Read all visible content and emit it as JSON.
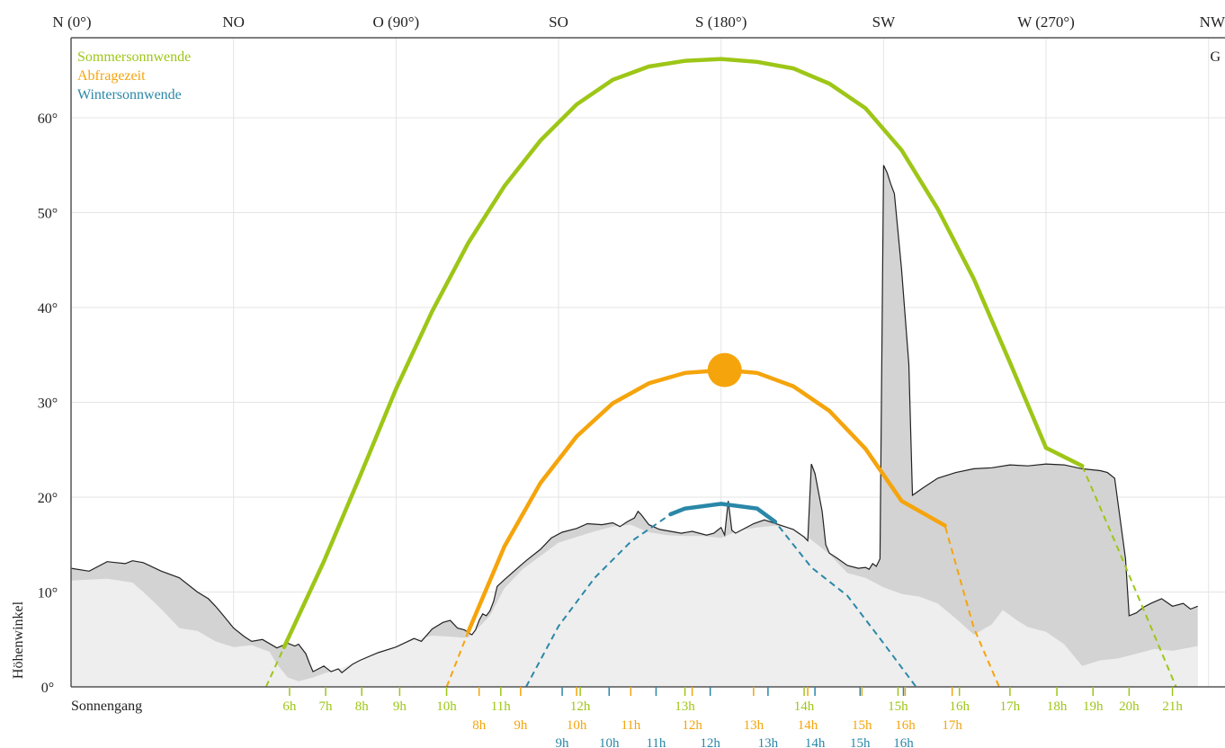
{
  "chart_data": {
    "type": "line",
    "xlabel": "",
    "ylabel": "Höhenwinkel",
    "xlim": [
      0,
      312
    ],
    "ylim": [
      0,
      68
    ],
    "x_ticks": [
      {
        "x": 0,
        "label": "N (0°)"
      },
      {
        "x": 45,
        "label": "NO"
      },
      {
        "x": 90,
        "label": "O (90°)"
      },
      {
        "x": 135,
        "label": "SO"
      },
      {
        "x": 180,
        "label": "S (180°)"
      },
      {
        "x": 225,
        "label": "SW"
      },
      {
        "x": 270,
        "label": "W (270°)"
      },
      {
        "x": 315,
        "label": "NW"
      }
    ],
    "y_ticks": [
      {
        "y": 0,
        "label": "0°"
      },
      {
        "y": 10,
        "label": "10°"
      },
      {
        "y": 20,
        "label": "20°"
      },
      {
        "y": 30,
        "label": "30°"
      },
      {
        "y": 40,
        "label": "40°"
      },
      {
        "y": 50,
        "label": "50°"
      },
      {
        "y": 60,
        "label": "60°"
      }
    ],
    "corner_label": "G",
    "row_label": "Sonnengang",
    "legend": [
      {
        "name": "Sommersonnwende",
        "color": "#9dc617"
      },
      {
        "name": "Abfragezeit",
        "color": "#f5a40c"
      },
      {
        "name": "Wintersonnwende",
        "color": "#2a87a8"
      }
    ],
    "series": [
      {
        "name": "Sommersonnwende",
        "color": "#9dc617",
        "peak_azimuth": 180,
        "peak_altitude": 66.2,
        "visible_from_azimuth": 59,
        "visible_to_azimuth": 280,
        "x": [
          54,
          59,
          70,
          80,
          90,
          100,
          110,
          120,
          130,
          140,
          150,
          160,
          170,
          180,
          190,
          200,
          210,
          220,
          230,
          240,
          250,
          260,
          270,
          280,
          290,
          306
        ],
        "y": [
          0,
          4.2,
          13.2,
          22.2,
          31.4,
          39.6,
          46.8,
          52.8,
          57.6,
          61.4,
          64.0,
          65.4,
          66.0,
          66.2,
          65.9,
          65.2,
          63.6,
          61.0,
          56.6,
          50.4,
          43.0,
          34.2,
          25.2,
          23.3,
          14.5,
          0
        ]
      },
      {
        "name": "Abfragezeit",
        "color": "#f5a40c",
        "peak_azimuth": 181,
        "peak_altitude": 33.4,
        "visible_from_azimuth": 110,
        "visible_to_azimuth": 242,
        "x": [
          104,
          110,
          120,
          130,
          140,
          150,
          160,
          170,
          181,
          190,
          200,
          210,
          220,
          230,
          242,
          250,
          257
        ],
        "y": [
          0,
          5.8,
          14.8,
          21.5,
          26.4,
          29.9,
          32.0,
          33.1,
          33.4,
          33.1,
          31.7,
          29.1,
          25.1,
          19.6,
          17.0,
          6.2,
          0
        ]
      },
      {
        "name": "Wintersonnwende",
        "color": "#2a87a8",
        "peak_azimuth": 180,
        "peak_altitude": 19.3,
        "visible_from_azimuth": 166,
        "visible_to_azimuth": 195,
        "x": [
          126,
          135,
          145,
          155,
          166,
          170,
          180,
          190,
          195,
          205,
          215,
          225,
          234
        ],
        "y": [
          0,
          6.4,
          11.5,
          15.3,
          18.2,
          18.8,
          19.3,
          18.8,
          17.4,
          12.6,
          9.6,
          4.6,
          0
        ]
      }
    ],
    "horizon": {
      "name": "Horizont",
      "x": [
        0,
        5,
        10,
        15,
        17,
        20,
        25,
        30,
        35,
        38,
        40,
        42,
        45,
        48,
        50,
        53,
        57,
        60,
        62,
        63,
        65,
        66,
        67,
        70,
        72,
        74,
        75,
        78,
        80,
        85,
        90,
        95,
        97,
        100,
        103,
        105,
        107,
        109,
        110,
        111,
        112,
        113,
        114,
        115,
        116,
        117,
        118,
        120,
        123,
        126,
        130,
        133,
        136,
        140,
        143,
        147,
        150,
        152,
        154,
        156,
        157,
        158,
        160,
        163,
        166,
        169,
        172,
        176,
        178,
        179,
        180,
        181,
        182,
        183,
        184,
        186,
        189,
        192,
        196,
        200,
        203,
        204,
        205,
        206,
        208,
        209,
        210,
        212,
        215,
        218,
        220,
        221,
        222,
        223,
        224,
        225,
        226,
        227,
        228,
        230,
        232,
        233,
        236,
        240,
        245,
        250,
        255,
        260,
        265,
        270,
        275,
        280,
        285,
        287,
        289,
        292,
        293,
        295,
        297,
        299,
        302,
        305,
        308,
        310,
        312
      ],
      "y": [
        12.5,
        12.2,
        13.2,
        13.0,
        13.3,
        13.1,
        12.2,
        11.5,
        10.0,
        9.3,
        8.5,
        7.6,
        6.2,
        5.3,
        4.8,
        5.0,
        4.1,
        4.6,
        4.3,
        4.5,
        3.5,
        2.5,
        1.6,
        2.2,
        1.6,
        1.9,
        1.5,
        2.4,
        2.8,
        3.6,
        4.2,
        5.1,
        4.8,
        6.1,
        6.8,
        7.0,
        6.2,
        6.0,
        5.7,
        5.5,
        6.0,
        7.0,
        7.7,
        7.5,
        8.0,
        9.0,
        10.6,
        11.3,
        12.3,
        13.3,
        14.5,
        15.7,
        16.3,
        16.7,
        17.2,
        17.1,
        17.3,
        16.9,
        17.4,
        17.8,
        18.5,
        18.1,
        17.1,
        16.6,
        16.4,
        16.2,
        16.4,
        16.0,
        16.2,
        16.5,
        16.8,
        16.0,
        19.6,
        16.5,
        16.2,
        16.6,
        17.2,
        17.6,
        17.1,
        16.6,
        15.8,
        15.4,
        23.5,
        22.5,
        18.5,
        15.0,
        14.1,
        13.6,
        12.8,
        12.5,
        12.6,
        12.4,
        13.0,
        12.7,
        13.5,
        55.0,
        54.2,
        53.0,
        52.0,
        44.0,
        34.0,
        20.2,
        21.0,
        22.0,
        22.6,
        23.0,
        23.1,
        23.4,
        23.3,
        23.5,
        23.4,
        23.0,
        22.8,
        22.6,
        22.0,
        13.5,
        7.5,
        7.8,
        8.4,
        8.8,
        9.3,
        8.5,
        8.8,
        8.2,
        8.5
      ]
    },
    "horizon_near": {
      "name": "Nahhorizont",
      "x": [
        0,
        10,
        17,
        20,
        25,
        30,
        35,
        40,
        45,
        50,
        55,
        57,
        60,
        63,
        67,
        70,
        75,
        80,
        85,
        90,
        95,
        100,
        105,
        108,
        110,
        113,
        116,
        120,
        125,
        130,
        135,
        140,
        145,
        150,
        155,
        160,
        165,
        170,
        175,
        180,
        185,
        190,
        195,
        200,
        205,
        210,
        215,
        220,
        225,
        230,
        235,
        240,
        245,
        250,
        255,
        258,
        262,
        265,
        270,
        275,
        280,
        285,
        290,
        295,
        300,
        305,
        312
      ],
      "y": [
        11.2,
        11.4,
        11.0,
        10.0,
        8.2,
        6.2,
        5.9,
        4.8,
        4.2,
        4.4,
        3.7,
        2.4,
        1.0,
        0.6,
        1.0,
        1.4,
        2.0,
        2.8,
        3.6,
        4.2,
        5.0,
        5.4,
        5.3,
        5.2,
        5.2,
        6.3,
        7.5,
        10.4,
        12.4,
        13.8,
        15.2,
        15.8,
        16.4,
        16.9,
        17.1,
        16.3,
        16.0,
        15.9,
        15.9,
        15.7,
        16.5,
        16.8,
        17.0,
        16.7,
        15.5,
        14.0,
        12.0,
        11.5,
        10.5,
        9.8,
        9.5,
        8.8,
        7.2,
        5.5,
        6.6,
        8.1,
        7.0,
        6.3,
        5.8,
        4.5,
        2.2,
        2.8,
        3.0,
        3.5,
        4.0,
        3.8,
        4.3
      ]
    },
    "marker": {
      "label": "Abfragezeit",
      "azimuth": 181,
      "altitude": 33.4,
      "color": "#f5a40c"
    },
    "hour_rows": [
      {
        "series": "Sommersonnwende",
        "color": "#9dc617",
        "labels": [
          {
            "x": 60.5,
            "text": "6h"
          },
          {
            "x": 70.5,
            "text": "7h"
          },
          {
            "x": 80.5,
            "text": "8h"
          },
          {
            "x": 91,
            "text": "9h"
          },
          {
            "x": 104,
            "text": "10h"
          },
          {
            "x": 119,
            "text": "11h"
          },
          {
            "x": 141,
            "text": "12h"
          },
          {
            "x": 170,
            "text": "13h"
          },
          {
            "x": 203,
            "text": "14h"
          },
          {
            "x": 229,
            "text": "15h"
          },
          {
            "x": 246,
            "text": "16h"
          },
          {
            "x": 260,
            "text": "17h"
          },
          {
            "x": 273,
            "text": "18h"
          },
          {
            "x": 283,
            "text": "19h"
          },
          {
            "x": 293,
            "text": "20h"
          },
          {
            "x": 305,
            "text": "21h"
          }
        ]
      },
      {
        "series": "Abfragezeit",
        "color": "#f5a40c",
        "labels": [
          {
            "x": 113,
            "text": "8h"
          },
          {
            "x": 124.5,
            "text": "9h"
          },
          {
            "x": 140,
            "text": "10h"
          },
          {
            "x": 155,
            "text": "11h"
          },
          {
            "x": 172,
            "text": "12h"
          },
          {
            "x": 189,
            "text": "13h"
          },
          {
            "x": 204,
            "text": "14h"
          },
          {
            "x": 219,
            "text": "15h"
          },
          {
            "x": 231,
            "text": "16h"
          },
          {
            "x": 244,
            "text": "17h"
          }
        ]
      },
      {
        "series": "Wintersonnwende",
        "color": "#2a87a8",
        "labels": [
          {
            "x": 136,
            "text": "9h"
          },
          {
            "x": 149,
            "text": "10h"
          },
          {
            "x": 162,
            "text": "11h"
          },
          {
            "x": 177,
            "text": "12h"
          },
          {
            "x": 193,
            "text": "13h"
          },
          {
            "x": 206,
            "text": "14h"
          },
          {
            "x": 218.5,
            "text": "15h"
          },
          {
            "x": 230.5,
            "text": "16h"
          }
        ]
      }
    ]
  }
}
